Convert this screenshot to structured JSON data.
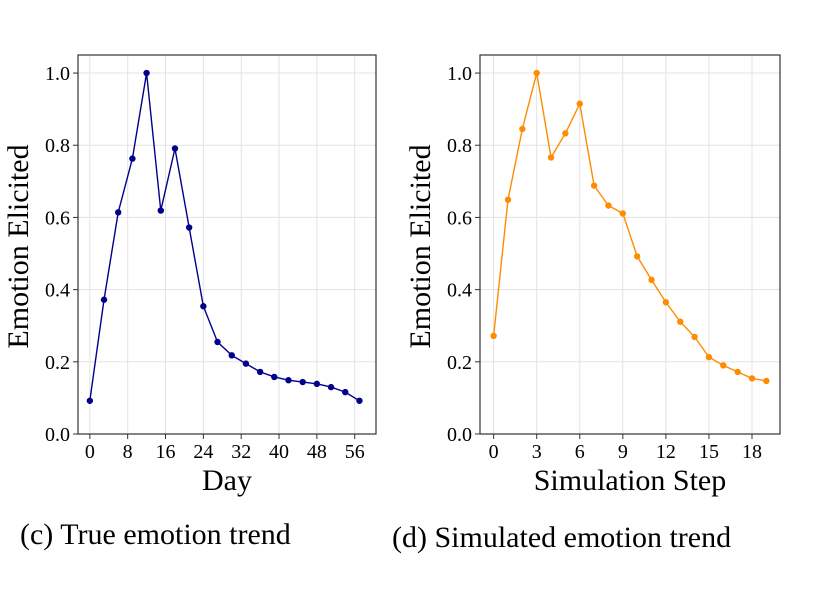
{
  "chart_data": [
    {
      "type": "line",
      "caption": "(c) True emotion trend",
      "xlabel": "Day",
      "ylabel": "Emotion Elicited",
      "xlim": [
        -2.5,
        60.5
      ],
      "ylim": [
        0,
        1.05
      ],
      "xticks": [
        0,
        8,
        16,
        24,
        32,
        40,
        48,
        56
      ],
      "yticks": [
        0.0,
        0.2,
        0.4,
        0.6,
        0.8,
        1.0
      ],
      "grid": true,
      "color": "#00008B",
      "x": [
        0,
        3,
        6,
        9,
        12,
        15,
        18,
        21,
        24,
        27,
        30,
        33,
        36,
        39,
        42,
        45,
        48,
        51,
        54,
        57
      ],
      "y": [
        0.092,
        0.372,
        0.614,
        0.763,
        1.0,
        0.619,
        0.791,
        0.572,
        0.354,
        0.255,
        0.218,
        0.195,
        0.172,
        0.158,
        0.149,
        0.144,
        0.139,
        0.13,
        0.116,
        0.092
      ]
    },
    {
      "type": "line",
      "caption": "(d) Simulated emotion trend",
      "xlabel": "Simulation Step",
      "ylabel": "Emotion Elicited",
      "xlim": [
        -0.95,
        19.95
      ],
      "ylim": [
        0,
        1.05
      ],
      "xticks": [
        0,
        3,
        6,
        9,
        12,
        15,
        18
      ],
      "yticks": [
        0.0,
        0.2,
        0.4,
        0.6,
        0.8,
        1.0
      ],
      "grid": true,
      "color": "#FF8C00",
      "x": [
        0,
        1,
        2,
        3,
        4,
        5,
        6,
        7,
        8,
        9,
        10,
        11,
        12,
        13,
        14,
        15,
        16,
        17,
        18,
        19
      ],
      "y": [
        0.272,
        0.649,
        0.845,
        1.0,
        0.766,
        0.833,
        0.915,
        0.688,
        0.633,
        0.611,
        0.492,
        0.427,
        0.365,
        0.311,
        0.269,
        0.213,
        0.19,
        0.172,
        0.154,
        0.147
      ]
    }
  ]
}
